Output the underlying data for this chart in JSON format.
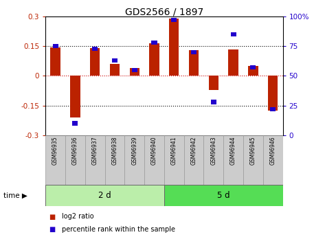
{
  "title": "GDS2566 / 1897",
  "samples": [
    "GSM96935",
    "GSM96936",
    "GSM96937",
    "GSM96938",
    "GSM96939",
    "GSM96940",
    "GSM96941",
    "GSM96942",
    "GSM96943",
    "GSM96944",
    "GSM96945",
    "GSM96946"
  ],
  "log2_ratio": [
    0.145,
    -0.21,
    0.14,
    0.06,
    0.04,
    0.165,
    0.29,
    0.13,
    -0.07,
    0.135,
    0.05,
    -0.175
  ],
  "percentile_rank": [
    75,
    10,
    73,
    63,
    55,
    78,
    97,
    70,
    28,
    85,
    57,
    22
  ],
  "group_labels": [
    "2 d",
    "5 d"
  ],
  "group_ranges": [
    [
      0,
      6
    ],
    [
      6,
      12
    ]
  ],
  "group_color_light": "#BBEEAA",
  "group_color_dark": "#55DD55",
  "bar_color": "#BB2200",
  "dot_color": "#2200CC",
  "ylim_left": [
    -0.3,
    0.3
  ],
  "ylim_right": [
    0,
    100
  ],
  "yticks_left": [
    -0.3,
    -0.15,
    0.0,
    0.15,
    0.3
  ],
  "yticks_right": [
    0,
    25,
    50,
    75,
    100
  ],
  "hlines": [
    -0.15,
    0.0,
    0.15
  ],
  "figsize": [
    4.73,
    3.45
  ],
  "dpi": 100
}
